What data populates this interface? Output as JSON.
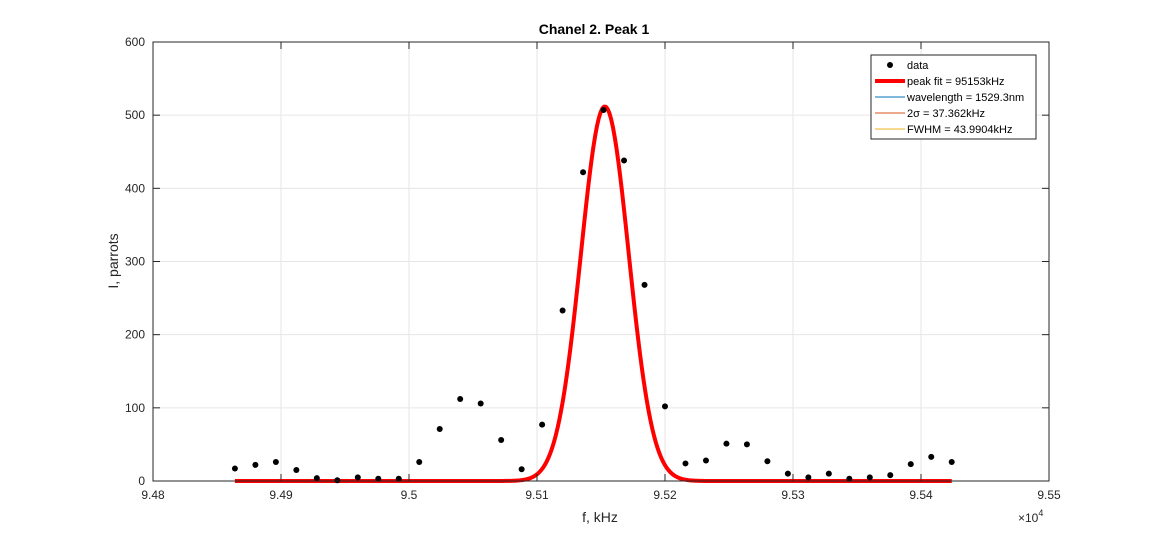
{
  "chart_data": {
    "type": "scatter",
    "title": "Chanel 2. Peak 1",
    "xlabel": "f, kHz",
    "ylabel": "I, parrots",
    "x_exponent_base": "×10",
    "x_exponent_power": "4",
    "xlim": [
      9.48,
      9.55
    ],
    "ylim": [
      0,
      600
    ],
    "grid": true,
    "legend_position": "top-right",
    "x_ticks": [
      "9.48",
      "9.49",
      "9.5",
      "9.51",
      "9.52",
      "9.53",
      "9.54",
      "9.55"
    ],
    "y_ticks": [
      "0",
      "100",
      "200",
      "300",
      "400",
      "500",
      "600"
    ],
    "colors": {
      "data": "#000000",
      "peak_fit": "#ff0000",
      "wavelength": "#0072bd",
      "sigma": "#d95319",
      "fwhm": "#edb120",
      "axes": "#262626",
      "grid": "#e6e6e6"
    },
    "legend": [
      {
        "key": "data",
        "label": "data",
        "style": "marker"
      },
      {
        "key": "peak_fit",
        "label": "peak fit = 95153kHz",
        "style": "thick-line"
      },
      {
        "key": "wavelength",
        "label": "wavelength = 1529.3nm",
        "style": "line"
      },
      {
        "key": "sigma",
        "label": "2σ = 37.362kHz",
        "style": "line"
      },
      {
        "key": "fwhm",
        "label": "FWHM = 43.9904kHz",
        "style": "line"
      }
    ],
    "series": [
      {
        "name": "data",
        "kind": "points",
        "points": [
          [
            9.4864,
            17
          ],
          [
            9.488,
            22
          ],
          [
            9.4896,
            26
          ],
          [
            9.4912,
            15
          ],
          [
            9.4928,
            4
          ],
          [
            9.4944,
            1
          ],
          [
            9.496,
            5
          ],
          [
            9.4976,
            3
          ],
          [
            9.4992,
            3
          ],
          [
            9.5008,
            26
          ],
          [
            9.5024,
            71
          ],
          [
            9.504,
            112
          ],
          [
            9.5056,
            106
          ],
          [
            9.5072,
            56
          ],
          [
            9.5088,
            16
          ],
          [
            9.5104,
            77
          ],
          [
            9.512,
            233
          ],
          [
            9.5136,
            422
          ],
          [
            9.5152,
            507
          ],
          [
            9.5168,
            438
          ],
          [
            9.5184,
            268
          ],
          [
            9.52,
            102
          ],
          [
            9.5216,
            24
          ],
          [
            9.5232,
            28
          ],
          [
            9.5248,
            51
          ],
          [
            9.5264,
            50
          ],
          [
            9.528,
            27
          ],
          [
            9.5296,
            10
          ],
          [
            9.5312,
            5
          ],
          [
            9.5328,
            10
          ],
          [
            9.5344,
            3
          ],
          [
            9.536,
            5
          ],
          [
            9.5376,
            8
          ],
          [
            9.5392,
            23
          ],
          [
            9.5408,
            33
          ],
          [
            9.5424,
            26
          ]
        ]
      },
      {
        "name": "peak fit = 95153kHz",
        "kind": "gaussian",
        "amplitude": 512,
        "center": 9.5153,
        "two_sigma": 0.0037362,
        "x_range": [
          9.4864,
          9.5424
        ]
      }
    ]
  }
}
